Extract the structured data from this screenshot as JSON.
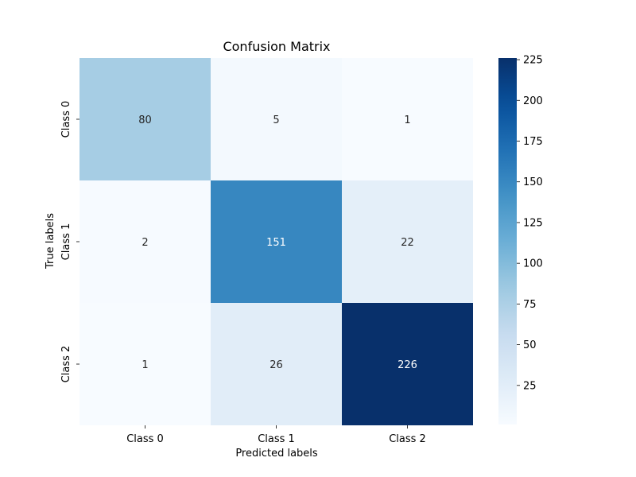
{
  "chart_data": {
    "type": "heatmap",
    "title": "Confusion Matrix",
    "xlabel": "Predicted labels",
    "ylabel": "True labels",
    "x_categories": [
      "Class 0",
      "Class 1",
      "Class 2"
    ],
    "y_categories": [
      "Class 0",
      "Class 1",
      "Class 2"
    ],
    "values": [
      [
        80,
        5,
        1
      ],
      [
        2,
        151,
        22
      ],
      [
        1,
        26,
        226
      ]
    ],
    "colormap": "Blues",
    "color_range": [
      1,
      226
    ],
    "colorbar_ticks": [
      25,
      50,
      75,
      100,
      125,
      150,
      175,
      200,
      225
    ],
    "annotation_light_color": "#ffffff",
    "annotation_dark_color": "#262626"
  }
}
